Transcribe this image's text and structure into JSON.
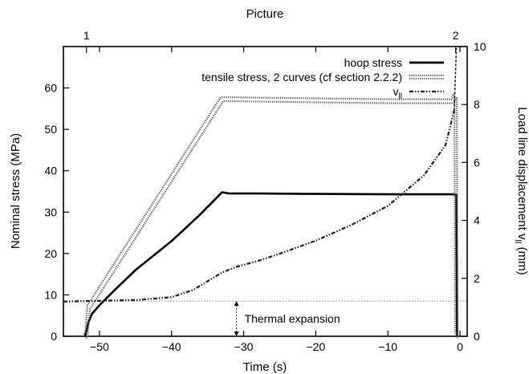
{
  "chart_data": {
    "type": "line",
    "top_axis_label": "Picture",
    "top_ticks": [
      {
        "x": -51.8,
        "label": "1"
      },
      {
        "x": -0.6,
        "label": "2"
      }
    ],
    "xlabel": "Time (s)",
    "ylabel": "Nominal stress (MPa)",
    "y2label": "Load line displacement v",
    "y2label_sub": "ll",
    "y2label_unit": " (mm)",
    "xlim": [
      -55,
      1
    ],
    "ylim": [
      0,
      70
    ],
    "y2lim": [
      0,
      10
    ],
    "x_ticks": [
      -50,
      -40,
      -30,
      -20,
      -10,
      0
    ],
    "x_tick_labels": [
      "−50",
      "−40",
      "−30",
      "−20",
      "−10",
      "0"
    ],
    "y_ticks": [
      0,
      10,
      20,
      30,
      40,
      50,
      60
    ],
    "y_tick_labels": [
      "0",
      "10",
      "20",
      "30",
      "40",
      "50",
      "60"
    ],
    "y2_ticks": [
      0,
      2,
      4,
      6,
      8,
      10
    ],
    "y2_tick_labels": [
      "0",
      "2",
      "4",
      "6",
      "8",
      "10"
    ],
    "grid": false,
    "legend_position": "top-right",
    "legend": [
      {
        "label": "hoop stress",
        "style": "solid"
      },
      {
        "label": "tensile stress, 2 curves (cf section 2.2.2)",
        "style": "double-dotted"
      },
      {
        "label": "v",
        "sub": "ll",
        "style": "dash-dot"
      }
    ],
    "annotation": {
      "text": "Thermal expansion",
      "x": -31,
      "y1": 0,
      "y2": 8.5
    },
    "reference_line": {
      "y": 8.5
    },
    "series": [
      {
        "name": "hoop stress",
        "axis": "left",
        "style": "solid",
        "x": [
          -52.0,
          -51.5,
          -51.0,
          -50.0,
          -48.0,
          -45.0,
          -40.0,
          -36.0,
          -33.0,
          -32.0,
          -28.0,
          -20.0,
          -10.0,
          -0.8,
          -0.5,
          -0.4
        ],
        "y": [
          0,
          3.5,
          5.5,
          7.5,
          11.0,
          16.0,
          23.0,
          29.5,
          34.8,
          34.5,
          34.5,
          34.4,
          34.3,
          34.3,
          34.2,
          0
        ]
      },
      {
        "name": "tensile stress, 2 curves (cf section 2.2.2)",
        "axis": "left",
        "style": "double-dotted",
        "x": [
          -52.0,
          -51.8,
          -51.5,
          -33.2,
          -33.0,
          -20.0,
          -10.0,
          -1.0,
          -0.8,
          -0.6,
          -0.5
        ],
        "y": [
          0,
          0.5,
          7.0,
          56.8,
          57.3,
          57.0,
          56.8,
          56.8,
          58.0,
          58.0,
          0
        ]
      },
      {
        "name": "v",
        "axis": "right",
        "style": "dash-dot",
        "x": [
          -55,
          -45,
          -40,
          -37,
          -35,
          -33,
          -31,
          -28,
          -25,
          -20,
          -15,
          -10,
          -5,
          -2,
          -0.8
        ],
        "y": [
          1.2,
          1.25,
          1.35,
          1.6,
          1.9,
          2.2,
          2.4,
          2.6,
          2.85,
          3.3,
          3.85,
          4.5,
          5.55,
          6.6,
          7.8
        ]
      }
    ]
  }
}
